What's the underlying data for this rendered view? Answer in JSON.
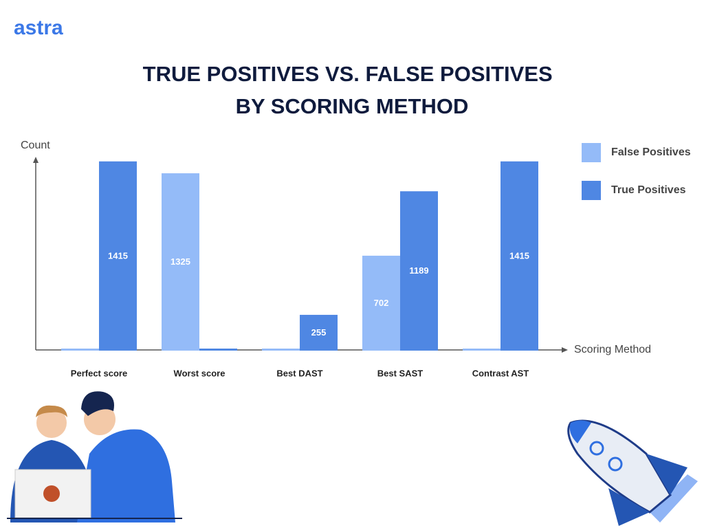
{
  "logo": "astra",
  "chart_data": {
    "type": "bar",
    "title": [
      "TRUE POSITIVES VS. FALSE POSITIVES",
      "BY SCORING METHOD"
    ],
    "y_label": "Count",
    "x_label": "Scoring Method",
    "categories": [
      "Perfect score",
      "Worst score",
      "Best DAST",
      "Best SAST",
      "Contrast AST"
    ],
    "series": [
      {
        "name": "False Positives",
        "color": "#94bbf8",
        "values": [
          0,
          1325,
          0,
          702,
          0
        ]
      },
      {
        "name": "True Positives",
        "color": "#4f87e3",
        "values": [
          1415,
          0,
          255,
          1189,
          1415
        ]
      }
    ],
    "ylim": [
      0,
      1450
    ],
    "legend": "right"
  }
}
